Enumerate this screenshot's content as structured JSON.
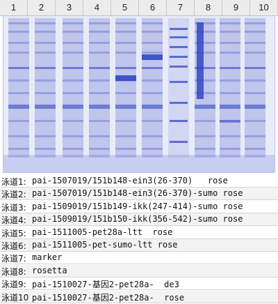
{
  "columns": [
    "1",
    "2",
    "3",
    "4",
    "5",
    "6",
    "7",
    "8",
    "9",
    "10"
  ],
  "gel": {
    "background": "#e9ebf7",
    "band_color": "#2a3fc2",
    "frame_color": "#b9bfe8"
  },
  "lanes": [
    {
      "label": "泳道1:",
      "desc": "pai-1507019/151b148-ein3(26-370)   rose"
    },
    {
      "label": "泳道2:",
      "desc": "pai-1507019/151b148-ein3(26-370)-sumo rose"
    },
    {
      "label": "泳道3:",
      "desc": "pai-1509019/151b149-ikk(247-414)-sumo rose"
    },
    {
      "label": "泳道4:",
      "desc": "pai-1509019/151b150-ikk(356-542)-sumo rose"
    },
    {
      "label": "泳道5:",
      "desc": "pai-1511005-pet28a-ltt  rose"
    },
    {
      "label": "泳道6:",
      "desc": "pai-1511005-pet-sumo-ltt rose"
    },
    {
      "label": "泳道7:",
      "desc": "marker"
    },
    {
      "label": "泳道8:",
      "desc": "rosetta"
    },
    {
      "label": "泳道9:",
      "desc": "pai-1510027-基因2-pet28a-  de3"
    },
    {
      "label": "泳道10",
      "desc": "pai-1510027-基因2-pet28a-  rose"
    }
  ]
}
